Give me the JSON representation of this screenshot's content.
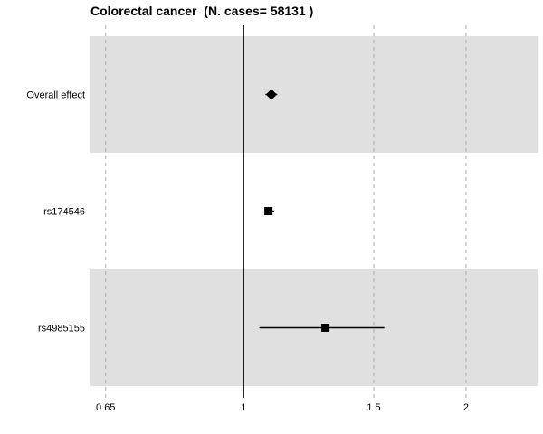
{
  "chart_data": {
    "type": "forest",
    "title": "Colorectal cancer  (N. cases= 58131 )",
    "xlabel": "",
    "ylabel": "",
    "x_scale": "log",
    "xlim": [
      0.62,
      2.5
    ],
    "x_ticks": [
      0.65,
      1,
      1.5,
      2
    ],
    "x_tick_labels": [
      "0.65",
      "1",
      "1.5",
      "2"
    ],
    "reference_line": 1,
    "grid": "vertical-dashed",
    "legend": "none",
    "rows": [
      {
        "label": "Overall effect",
        "estimate": 1.09,
        "ci_low": 1.07,
        "ci_high": 1.11,
        "marker": "diamond",
        "shaded": true
      },
      {
        "label": "rs174546",
        "estimate": 1.08,
        "ci_low": 1.07,
        "ci_high": 1.1,
        "marker": "square",
        "shaded": false
      },
      {
        "label": "rs4985155",
        "estimate": 1.29,
        "ci_low": 1.05,
        "ci_high": 1.55,
        "marker": "square",
        "shaded": true
      }
    ],
    "colors": {
      "band": "#e0e0e0",
      "marker": "#000000",
      "grid": "#b0b0b0"
    }
  }
}
